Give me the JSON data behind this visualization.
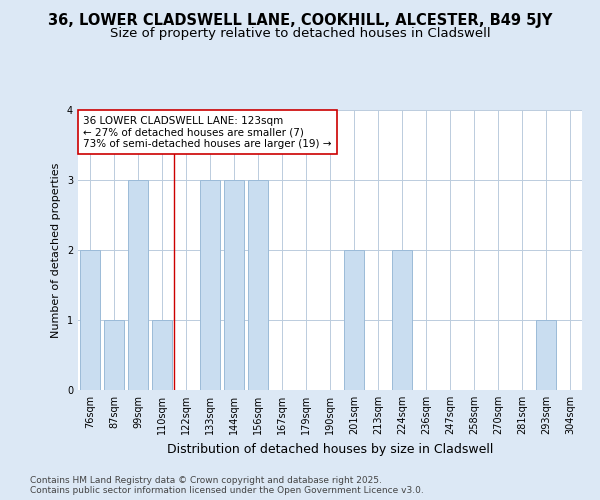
{
  "title": "36, LOWER CLADSWELL LANE, COOKHILL, ALCESTER, B49 5JY",
  "subtitle": "Size of property relative to detached houses in Cladswell",
  "xlabel": "Distribution of detached houses by size in Cladswell",
  "ylabel": "Number of detached properties",
  "categories": [
    "76sqm",
    "87sqm",
    "99sqm",
    "110sqm",
    "122sqm",
    "133sqm",
    "144sqm",
    "156sqm",
    "167sqm",
    "179sqm",
    "190sqm",
    "201sqm",
    "213sqm",
    "224sqm",
    "236sqm",
    "247sqm",
    "258sqm",
    "270sqm",
    "281sqm",
    "293sqm",
    "304sqm"
  ],
  "values": [
    2,
    1,
    3,
    1,
    0,
    3,
    3,
    3,
    0,
    0,
    0,
    2,
    0,
    2,
    0,
    0,
    0,
    0,
    0,
    1,
    0
  ],
  "bar_color": "#c9ddf0",
  "bar_edge_color": "#9bbbd8",
  "vline_x_index": 4,
  "vline_color": "#cc0000",
  "annotation_text": "36 LOWER CLADSWELL LANE: 123sqm\n← 27% of detached houses are smaller (7)\n73% of semi-detached houses are larger (19) →",
  "annotation_box_color": "#ffffff",
  "annotation_box_edge_color": "#cc0000",
  "ylim": [
    0,
    4
  ],
  "yticks": [
    0,
    1,
    2,
    3,
    4
  ],
  "fig_background_color": "#dce8f5",
  "plot_background": "#ffffff",
  "grid_color": "#bbccdd",
  "footer_text": "Contains HM Land Registry data © Crown copyright and database right 2025.\nContains public sector information licensed under the Open Government Licence v3.0.",
  "title_fontsize": 10.5,
  "subtitle_fontsize": 9.5,
  "xlabel_fontsize": 9,
  "ylabel_fontsize": 8,
  "tick_fontsize": 7,
  "annotation_fontsize": 7.5,
  "footer_fontsize": 6.5
}
